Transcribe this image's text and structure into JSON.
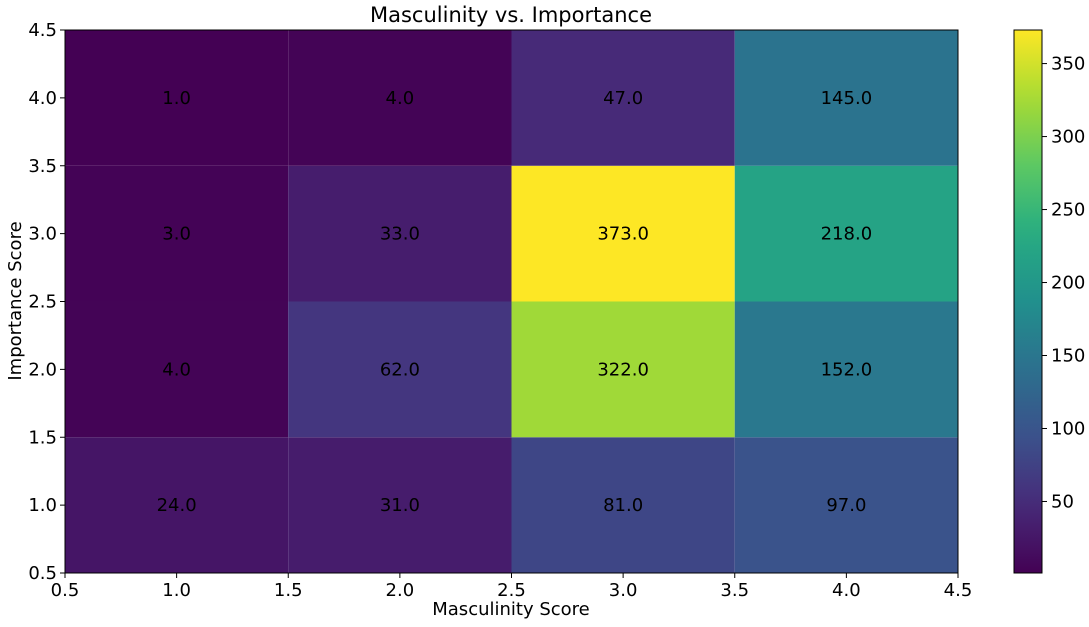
{
  "chart_data": {
    "type": "heatmap",
    "title": "Masculinity vs. Importance",
    "xlabel": "Masculinity Score",
    "ylabel": "Importance Score",
    "x_categories": [
      1,
      2,
      3,
      4
    ],
    "y_categories": [
      1,
      2,
      3,
      4
    ],
    "xlim": [
      0.5,
      4.5
    ],
    "ylim": [
      0.5,
      4.5
    ],
    "x_ticks": [
      "0.5",
      "1.0",
      "1.5",
      "2.0",
      "2.5",
      "3.0",
      "3.5",
      "4.0",
      "4.5"
    ],
    "y_ticks": [
      "0.5",
      "1.0",
      "1.5",
      "2.0",
      "2.5",
      "3.0",
      "3.5",
      "4.0",
      "4.5"
    ],
    "values": [
      [
        24,
        31,
        81,
        97
      ],
      [
        4,
        62,
        322,
        152
      ],
      [
        3,
        33,
        373,
        218
      ],
      [
        1,
        4,
        47,
        145
      ]
    ],
    "cell_labels": [
      [
        "24.0",
        "31.0",
        "81.0",
        "97.0"
      ],
      [
        "4.0",
        "62.0",
        "322.0",
        "152.0"
      ],
      [
        "3.0",
        "33.0",
        "373.0",
        "218.0"
      ],
      [
        "1.0",
        "4.0",
        "47.0",
        "145.0"
      ]
    ],
    "colormap": "viridis",
    "color_range": [
      1,
      373
    ],
    "colorbar_ticks": [
      50,
      100,
      150,
      200,
      250,
      300,
      350
    ],
    "grid": false
  }
}
